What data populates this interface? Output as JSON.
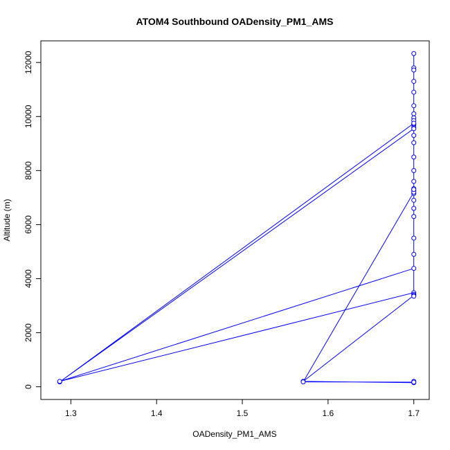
{
  "chart_data": {
    "type": "line",
    "title": "ATOM4 Southbound OADensity_PM1_AMS",
    "xlabel": "OADensity_PM1_AMS",
    "ylabel": "Altitude (m)",
    "xlim": [
      1.265,
      1.718
    ],
    "ylim": [
      -470,
      12800
    ],
    "x_ticks": [
      1.3,
      1.4,
      1.5,
      1.6,
      1.7
    ],
    "x_tick_labels": [
      "1.3",
      "1.4",
      "1.5",
      "1.6",
      "1.7"
    ],
    "y_ticks": [
      0,
      2000,
      4000,
      6000,
      8000,
      10000,
      12000
    ],
    "y_tick_labels": [
      "0",
      "2000",
      "4000",
      "6000",
      "8000",
      "10000",
      "12000"
    ],
    "grid": false,
    "series_color": "#0000ff",
    "marker": "open-circle",
    "series": [
      {
        "x": [
          1.7,
          1.7,
          1.7,
          1.7,
          1.7,
          1.7,
          1.7,
          1.7,
          1.7,
          1.7,
          1.7,
          1.7,
          1.7,
          1.287,
          1.7,
          1.7,
          1.7,
          1.7,
          1.7,
          1.7,
          1.7,
          1.7,
          1.7,
          1.7,
          1.7,
          1.7,
          1.7,
          1.7,
          1.7,
          1.287,
          1.7,
          1.7,
          1.7,
          1.571,
          1.7,
          1.7,
          1.7,
          1.571,
          1.7,
          1.7,
          1.7
        ],
        "y": [
          12330,
          11800,
          11720,
          11300,
          10900,
          10400,
          10100,
          9950,
          9850,
          9700,
          9600,
          9720,
          9750,
          180,
          9550,
          9300,
          9030,
          8500,
          8000,
          7600,
          7330,
          7260,
          7150,
          6900,
          6600,
          6300,
          5500,
          4900,
          4380,
          200,
          3480,
          3420,
          3380,
          200,
          150,
          200,
          170,
          180,
          7200,
          7300,
          3350
        ]
      }
    ]
  }
}
